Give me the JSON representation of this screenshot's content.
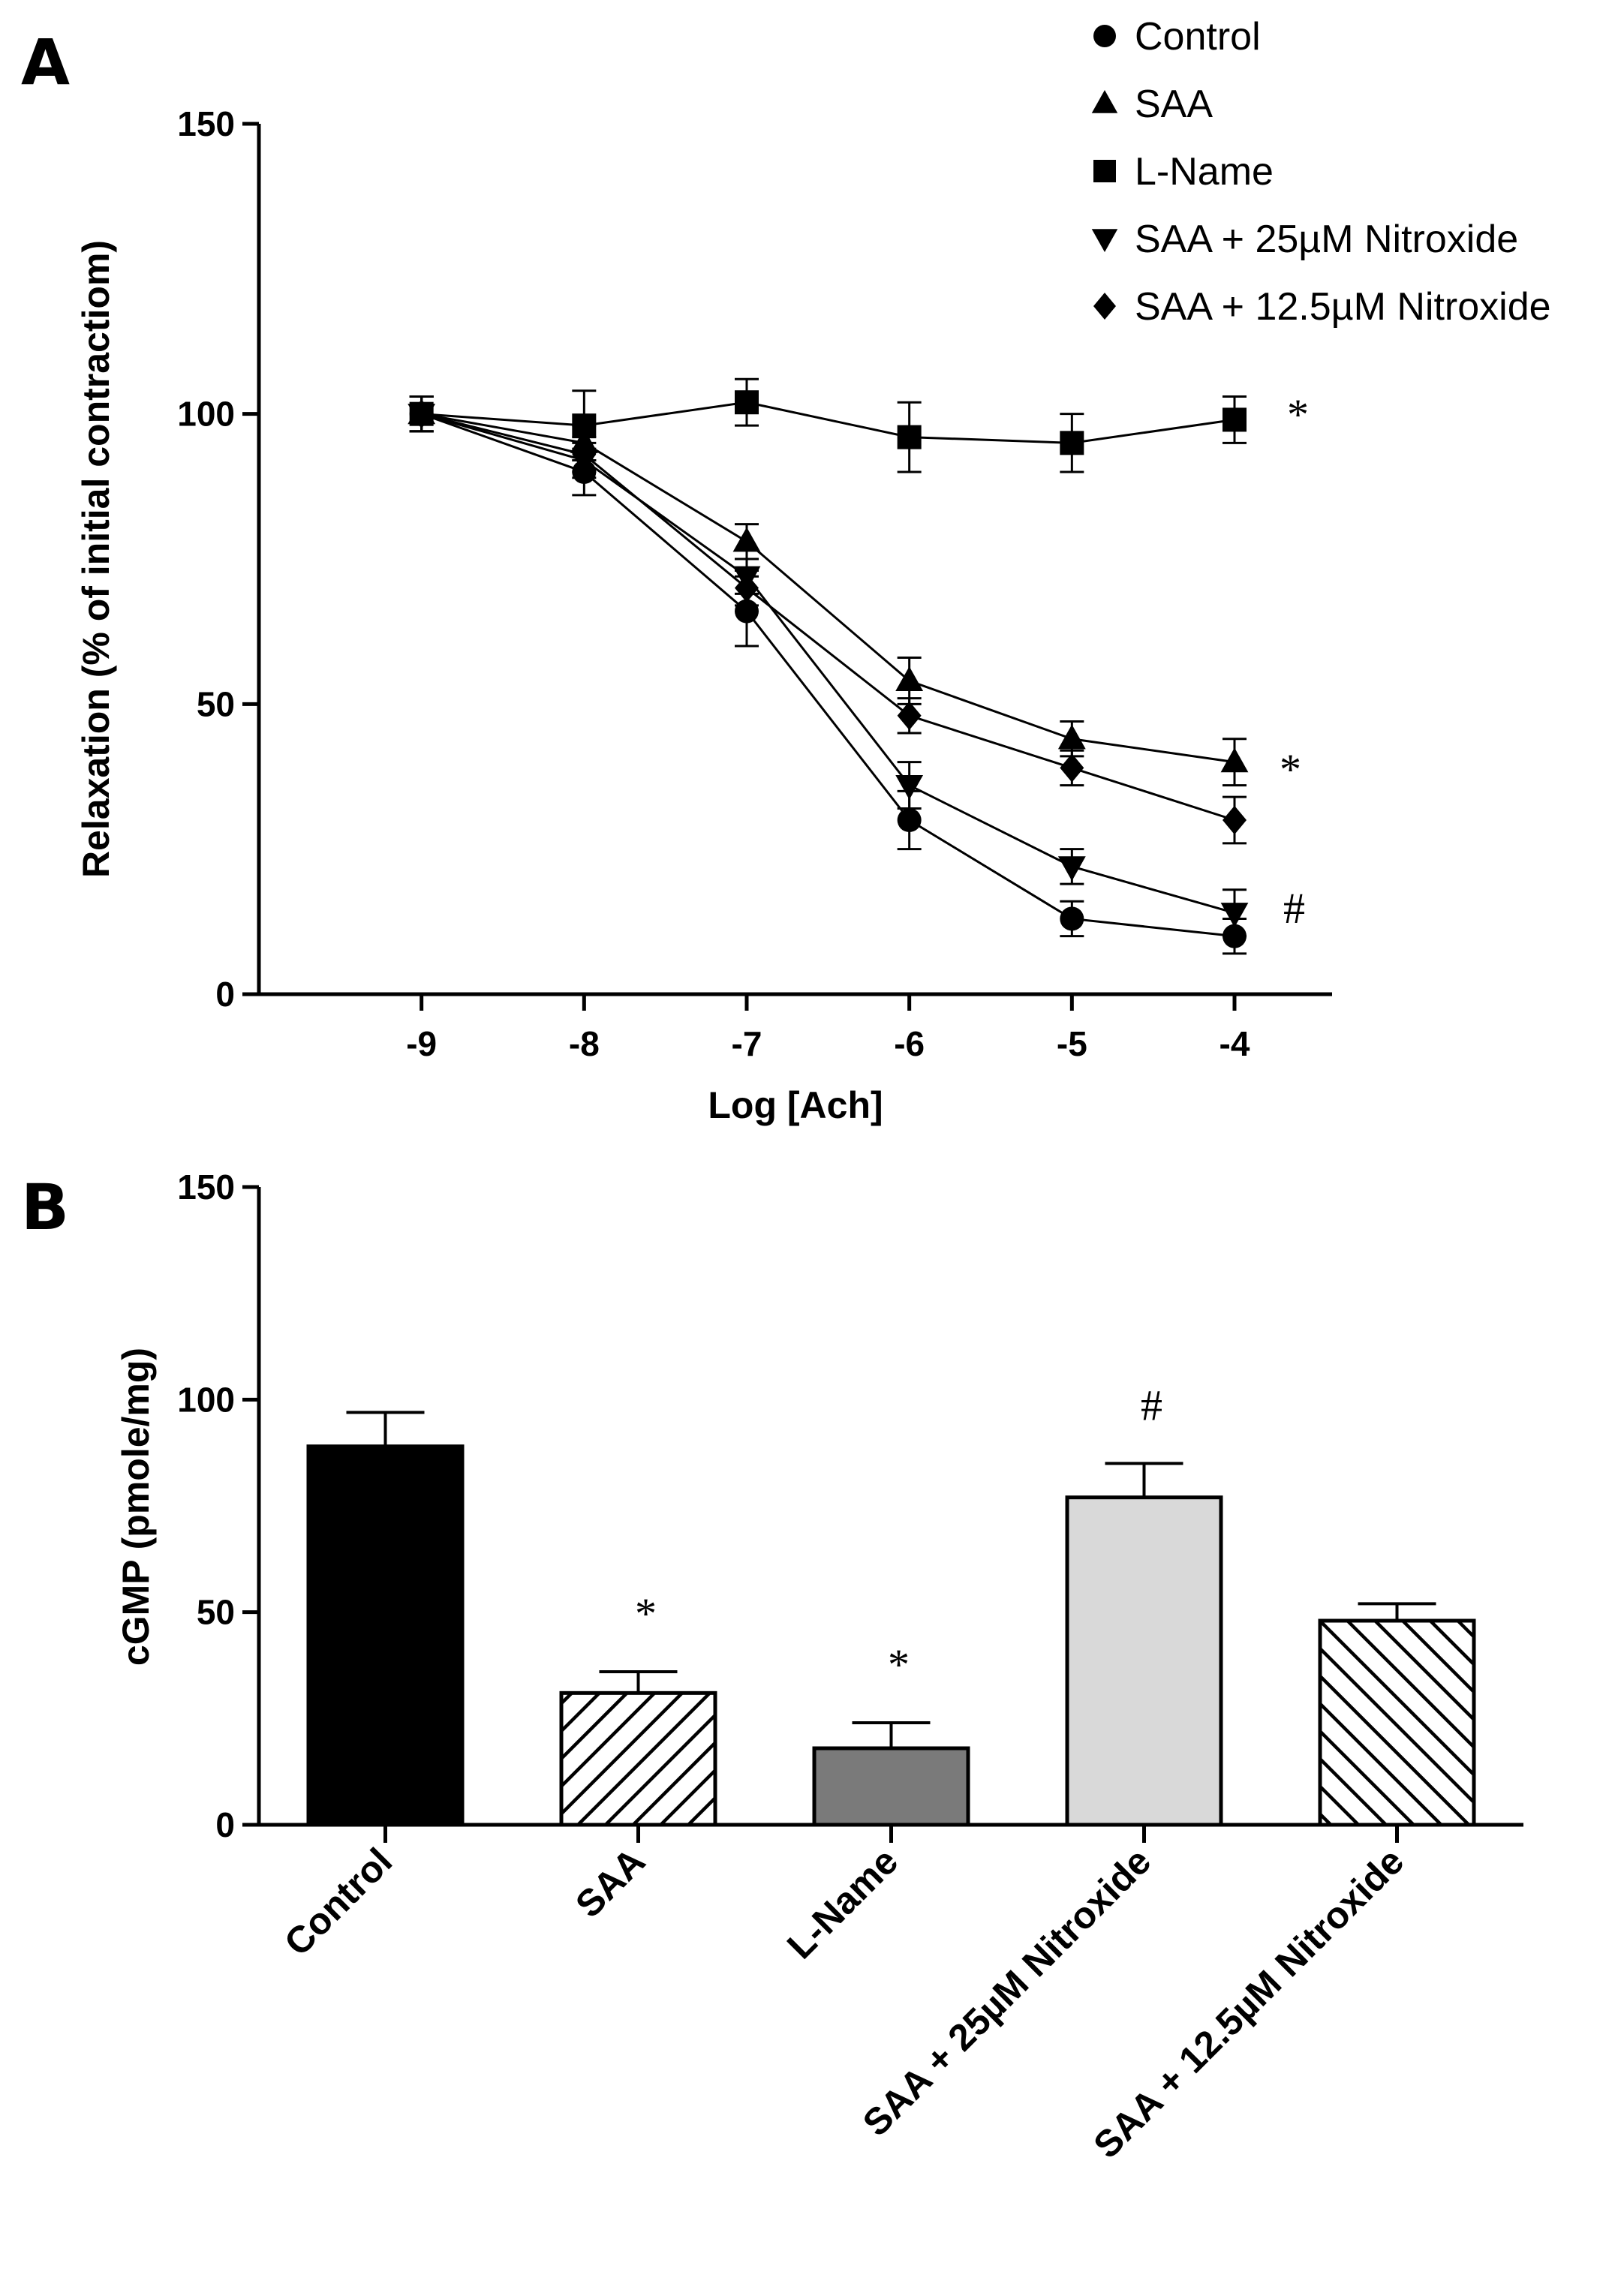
{
  "panels": {
    "a_label": "A",
    "b_label": "B"
  },
  "chart_data": [
    {
      "type": "line",
      "panel": "A",
      "xlabel": "Log [Ach]",
      "ylabel": "Relaxation (% of initial contractiom)",
      "x": [
        -9,
        -8,
        -7,
        -6,
        -5,
        -4
      ],
      "x_tick_labels": [
        "-9",
        "-8",
        "-7",
        "-6",
        "-5",
        "-4"
      ],
      "xlim": [
        -10,
        -3.4
      ],
      "ylim": [
        0,
        150
      ],
      "y_ticks": [
        0,
        50,
        100,
        150
      ],
      "y_tick_labels": [
        "0",
        "50",
        "100",
        "150"
      ],
      "legend_position": "top-right",
      "series": [
        {
          "name": "Control",
          "marker": "circle",
          "values": [
            100,
            90,
            66,
            30,
            13,
            10
          ],
          "errors": [
            3,
            4,
            6,
            5,
            3,
            3
          ]
        },
        {
          "name": "SAA",
          "marker": "triangle-up",
          "values": [
            100,
            95,
            78,
            54,
            44,
            40
          ],
          "errors": [
            3,
            3,
            3,
            4,
            3,
            4
          ]
        },
        {
          "name": "L-Name",
          "marker": "square",
          "values": [
            100,
            98,
            102,
            96,
            95,
            99
          ],
          "errors": [
            3,
            6,
            4,
            6,
            5,
            4
          ]
        },
        {
          "name": "SAA + 25µM Nitroxide",
          "marker": "triangle-down",
          "values": [
            100,
            92,
            72,
            36,
            22,
            14
          ],
          "errors": [
            3,
            3,
            3,
            4,
            3,
            4
          ]
        },
        {
          "name": "SAA + 12.5µM Nitroxide",
          "marker": "diamond",
          "values": [
            100,
            93,
            70,
            48,
            39,
            30
          ],
          "errors": [
            3,
            3,
            3,
            3,
            3,
            4
          ]
        }
      ],
      "annotations": [
        {
          "text": "*",
          "near_series": "L-Name"
        },
        {
          "text": "*",
          "near_series": "SAA"
        },
        {
          "text": "#",
          "near_series": "SAA + 25µM Nitroxide"
        }
      ]
    },
    {
      "type": "bar",
      "panel": "B",
      "xlabel": "",
      "ylabel": "cGMP (pmole/mg)",
      "categories": [
        "Control",
        "SAA",
        "L-Name",
        "SAA + 25µM Nitroxide",
        "SAA + 12.5µM Nitroxide"
      ],
      "values": [
        89,
        31,
        18,
        77,
        48
      ],
      "errors": [
        8,
        5,
        6,
        8,
        4
      ],
      "fills": [
        "black",
        "hatch-right",
        "gray",
        "lightgray",
        "hatch-left"
      ],
      "colors": {
        "gray": "#7a7a7a",
        "lightgray": "#d9d9d9",
        "black": "#000000"
      },
      "significance": [
        "",
        "*",
        "*",
        "#",
        ""
      ],
      "ylim": [
        0,
        150
      ],
      "y_ticks": [
        0,
        50,
        100,
        150
      ],
      "y_tick_labels": [
        "0",
        "50",
        "100",
        "150"
      ]
    }
  ]
}
